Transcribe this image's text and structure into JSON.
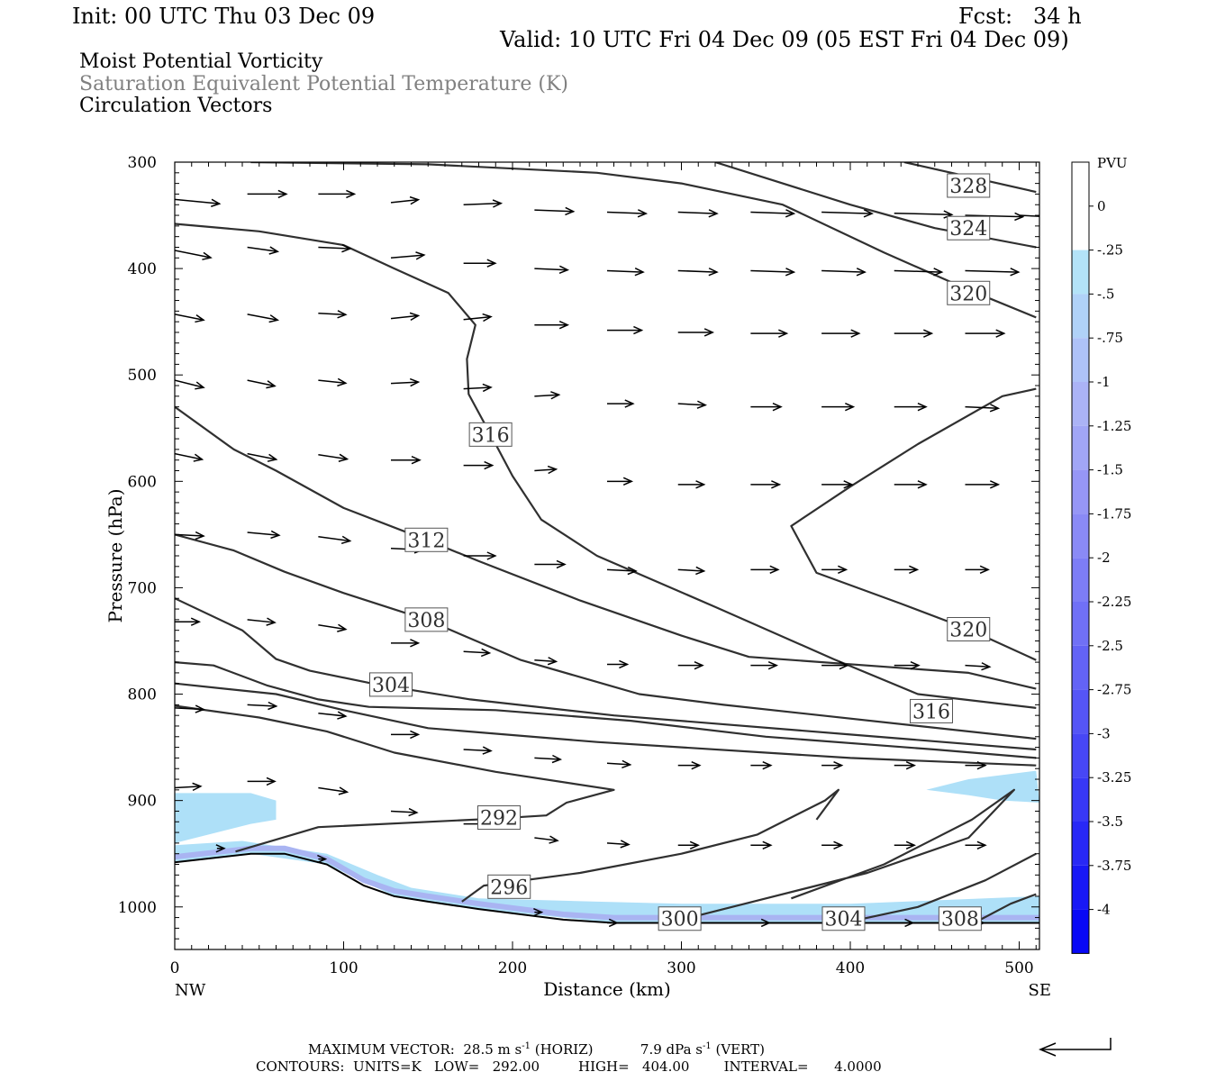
{
  "header": {
    "init": "Init: 00 UTC Thu 03 Dec 09",
    "fcst": "Fcst:   34 h",
    "valid": "Valid: 10 UTC Fri 04 Dec 09 (05 EST Fri 04 Dec 09)"
  },
  "titles": [
    "Moist Potential Vorticity",
    "Saturation Equivalent Potential Temperature (K)",
    "Circulation Vectors"
  ],
  "colors": {
    "shaded_light": "#aee0f8",
    "shaded_mid": "#a9b4f2",
    "contour": "#303030",
    "vector": "#000000"
  },
  "chart_data": {
    "type": "cross-section",
    "xlabel": "Distance (km)",
    "ylabel": "Pressure (hPa)",
    "xlim": [
      0,
      512
    ],
    "ylim": [
      1040,
      300
    ],
    "x_ticks": [
      0,
      100,
      200,
      300,
      400,
      500
    ],
    "y_ticks": [
      300,
      400,
      500,
      600,
      700,
      800,
      900,
      1000
    ],
    "endpoints": {
      "left": "NW",
      "right": "SE"
    },
    "colorbar": {
      "title": "PVU",
      "labels": [
        "0",
        "-.25",
        "-.5",
        "-.75",
        "-1",
        "-1.25",
        "-1.5",
        "-1.75",
        "-2",
        "-2.25",
        "-2.5",
        "-2.75",
        "-3",
        "-3.25",
        "-3.5",
        "-3.75",
        "-4"
      ],
      "colors": [
        "#ffffff",
        "#ffffff",
        "#b3e3f8",
        "#b0d2f8",
        "#aec2f8",
        "#abb3f6",
        "#a1a6f6",
        "#9696f6",
        "#8a8af6",
        "#7d7df6",
        "#7070f6",
        "#6363f6",
        "#5555f6",
        "#4747f6",
        "#3838f6",
        "#2828f6",
        "#1818f6",
        "#0808f6"
      ]
    },
    "contour_labels": [
      {
        "text": "328",
        "x": 470,
        "p": 322
      },
      {
        "text": "324",
        "x": 470,
        "p": 362
      },
      {
        "text": "320",
        "x": 470,
        "p": 423
      },
      {
        "text": "316",
        "x": 187,
        "p": 556
      },
      {
        "text": "312",
        "x": 149,
        "p": 655
      },
      {
        "text": "320",
        "x": 470,
        "p": 739
      },
      {
        "text": "308",
        "x": 149,
        "p": 730
      },
      {
        "text": "304",
        "x": 128,
        "p": 791
      },
      {
        "text": "316",
        "x": 448,
        "p": 816
      },
      {
        "text": "292",
        "x": 192,
        "p": 916
      },
      {
        "text": "296",
        "x": 198,
        "p": 981
      },
      {
        "text": "300",
        "x": 299,
        "p": 1011
      },
      {
        "text": "304",
        "x": 396,
        "p": 1011
      },
      {
        "text": "308",
        "x": 465,
        "p": 1011
      }
    ],
    "contours": [
      {
        "value": 328,
        "x": [
          432,
          510
        ],
        "p": [
          300,
          328
        ]
      },
      {
        "value": 324,
        "x": [
          320,
          350,
          400,
          450,
          510
        ],
        "p": [
          300,
          315,
          340,
          362,
          380
        ]
      },
      {
        "value": 320,
        "x": [
          45,
          150,
          250,
          300,
          360,
          420,
          470,
          510
        ],
        "p": [
          300,
          302,
          310,
          320,
          340,
          385,
          420,
          446
        ]
      },
      {
        "value": 316,
        "x": [
          0,
          50,
          100,
          130,
          162,
          178,
          173,
          174,
          187,
          200,
          217,
          250,
          320,
          390,
          440,
          510
        ],
        "p": [
          358,
          365,
          378,
          400,
          423,
          453,
          485,
          518,
          556,
          595,
          636,
          670,
          718,
          767,
          800,
          813
        ]
      },
      {
        "value": 312,
        "x": [
          0,
          35,
          60,
          100,
          149,
          180,
          240,
          300,
          340,
          470,
          510
        ],
        "p": [
          530,
          570,
          590,
          625,
          655,
          675,
          712,
          745,
          765,
          780,
          795
        ]
      },
      {
        "value": 320,
        "x": [
          510,
          490,
          440,
          400,
          365,
          380,
          430,
          470,
          510
        ],
        "p": [
          513,
          520,
          565,
          605,
          642,
          686,
          715,
          739,
          768
        ]
      },
      {
        "value": 308,
        "x": [
          0,
          35,
          65,
          100,
          149,
          205,
          275,
          325,
          510
        ],
        "p": [
          650,
          665,
          685,
          705,
          730,
          768,
          800,
          810,
          842
        ]
      },
      {
        "value": 304,
        "x": [
          0,
          40,
          60,
          80,
          120,
          175,
          260,
          400,
          510
        ],
        "p": [
          710,
          740,
          767,
          778,
          791,
          805,
          820,
          838,
          852
        ]
      },
      {
        "value": 300,
        "x": [
          0,
          23,
          55,
          85,
          115,
          190,
          270,
          350,
          450,
          510
        ],
        "p": [
          770,
          773,
          792,
          805,
          812,
          815,
          825,
          840,
          852,
          860
        ]
      },
      {
        "value": 296,
        "x": [
          0,
          60,
          100,
          150,
          250,
          350,
          400,
          510
        ],
        "p": [
          790,
          800,
          815,
          832,
          845,
          855,
          860,
          867
        ]
      },
      {
        "value": 292,
        "x": [
          0,
          50,
          90,
          130,
          190,
          260,
          232,
          220,
          190,
          150,
          85,
          36
        ],
        "p": [
          811,
          822,
          835,
          855,
          873,
          890,
          902,
          914,
          917,
          920,
          925,
          948
        ]
      },
      {
        "value": 296,
        "x": [
          170,
          183,
          240,
          300,
          345,
          385,
          393,
          380
        ],
        "p": [
          995,
          980,
          968,
          950,
          932,
          900,
          890,
          918
        ]
      },
      {
        "value": 300,
        "x": [
          305,
          350,
          410,
          470,
          497,
          472,
          420,
          365
        ],
        "p": [
          1010,
          992,
          968,
          935,
          890,
          918,
          960,
          992
        ]
      },
      {
        "value": 304,
        "x": [
          402,
          440,
          480,
          510
        ],
        "p": [
          1013,
          1000,
          975,
          950
        ]
      },
      {
        "value": 308,
        "x": [
          477,
          495,
          510
        ],
        "p": [
          1012,
          997,
          988
        ]
      }
    ],
    "terrain": {
      "x": [
        0,
        45,
        65,
        90,
        112,
        130,
        150,
        180,
        230,
        260,
        512
      ],
      "p": [
        958,
        950,
        950,
        960,
        980,
        990,
        995,
        1002,
        1012,
        1015,
        1015
      ]
    },
    "shaded": [
      {
        "x": [
          0,
          45,
          60,
          60,
          45,
          0
        ],
        "p": [
          893,
          893,
          900,
          918,
          922,
          940
        ]
      },
      {
        "x": [
          0,
          40,
          90,
          120,
          140,
          180,
          250,
          300,
          400,
          512,
          512,
          260,
          180,
          130,
          90,
          45,
          0
        ],
        "p": [
          942,
          938,
          950,
          970,
          982,
          992,
          995,
          997,
          997,
          990,
          1015,
          1015,
          1002,
          990,
          960,
          950,
          958
        ]
      },
      {
        "x": [
          445,
          470,
          510,
          512,
          490,
          470
        ],
        "p": [
          890,
          880,
          872,
          902,
          900,
          895
        ]
      }
    ],
    "vectors": [
      {
        "x": [
          0,
          43,
          85,
          128,
          171,
          213,
          256,
          298,
          341,
          383,
          426,
          468,
          500
        ],
        "p": [
          335,
          330,
          330,
          338,
          340,
          345,
          347,
          347,
          347,
          347,
          348,
          350,
          350
        ],
        "u": [
          31,
          27,
          25,
          19,
          26,
          27,
          27,
          27,
          30,
          35,
          40,
          40,
          20
        ],
        "w": [
          -3,
          0,
          0,
          2,
          1,
          -1,
          -1,
          -1,
          -1,
          -1,
          -1,
          -1,
          -1
        ]
      },
      {
        "x": [
          0,
          43,
          85,
          128,
          171,
          213,
          256,
          298,
          341,
          383,
          426,
          468
        ],
        "p": [
          383,
          380,
          380,
          390,
          395,
          400,
          402,
          402,
          402,
          402,
          402,
          402
        ],
        "u": [
          25,
          21,
          22,
          23,
          22,
          23,
          25,
          27,
          30,
          30,
          33,
          37
        ],
        "w": [
          -5,
          -3,
          -1,
          2,
          0,
          -1,
          -1,
          -1,
          -1,
          -1,
          -1,
          -1
        ]
      },
      {
        "x": [
          0,
          43,
          85,
          128,
          171,
          213,
          256,
          298,
          341,
          383,
          426,
          468
        ],
        "p": [
          443,
          443,
          442,
          447,
          448,
          453,
          458,
          460,
          461,
          461,
          461,
          461
        ],
        "u": [
          20,
          21,
          19,
          19,
          19,
          23,
          24,
          24,
          25,
          26,
          26,
          27
        ],
        "w": [
          -4,
          -4,
          -1,
          2,
          2,
          0,
          0,
          0,
          0,
          0,
          0,
          0
        ]
      },
      {
        "x": [
          0,
          43,
          85,
          128,
          171,
          213,
          256,
          298,
          341,
          383,
          426,
          468
        ],
        "p": [
          505,
          505,
          505,
          508,
          513,
          520,
          527,
          527,
          530,
          530,
          530,
          530
        ],
        "u": [
          20,
          19,
          19,
          19,
          19,
          17,
          18,
          19,
          21,
          22,
          22,
          23
        ],
        "w": [
          -5,
          -4,
          -2,
          1,
          1,
          1,
          0,
          -1,
          0,
          0,
          0,
          -1
        ]
      },
      {
        "x": [
          0,
          43,
          85,
          128,
          171,
          213,
          256,
          298,
          341,
          383,
          426,
          468
        ],
        "p": [
          574,
          574,
          575,
          580,
          585,
          590,
          600,
          603,
          603,
          603,
          603,
          603
        ],
        "u": [
          19,
          20,
          20,
          20,
          20,
          15,
          17,
          18,
          20,
          21,
          22,
          23
        ],
        "w": [
          -4,
          -4,
          -3,
          0,
          0,
          1,
          0,
          0,
          0,
          0,
          0,
          0
        ]
      },
      {
        "x": [
          0,
          43,
          85,
          128,
          171,
          213,
          256,
          298,
          341,
          383,
          426,
          468
        ],
        "p": [
          650,
          648,
          652,
          663,
          670,
          678,
          683,
          683,
          683,
          683,
          683,
          683
        ],
        "u": [
          20,
          22,
          22,
          22,
          22,
          21,
          20,
          18,
          19,
          17,
          16,
          16
        ],
        "w": [
          -1,
          -2,
          -3,
          -1,
          0,
          0,
          -1,
          -1,
          0,
          0,
          0,
          0
        ]
      },
      {
        "x": [
          0,
          43,
          85,
          128,
          171,
          213,
          256,
          298,
          341,
          383,
          426,
          468
        ],
        "p": [
          732,
          730,
          735,
          752,
          760,
          768,
          772,
          773,
          773,
          773,
          773,
          773
        ],
        "u": [
          17,
          19,
          19,
          19,
          18,
          15,
          14,
          17,
          18,
          18,
          17,
          17
        ],
        "w": [
          0,
          -2,
          -3,
          0,
          -1,
          -1,
          0,
          0,
          0,
          0,
          0,
          -1
        ]
      },
      {
        "x": [
          0,
          43,
          85,
          128,
          171,
          213,
          256,
          298,
          341,
          383,
          426,
          468
        ],
        "p": [
          813,
          810,
          818,
          838,
          852,
          860,
          865,
          867,
          867,
          867,
          867,
          867
        ],
        "u": [
          20,
          20,
          19,
          19,
          19,
          18,
          16,
          15,
          14,
          14,
          14,
          14
        ],
        "w": [
          -1,
          -1,
          -2,
          0,
          -1,
          -1,
          -1,
          0,
          0,
          0,
          0,
          0
        ]
      },
      {
        "x": [
          0,
          43,
          85,
          128,
          171,
          213,
          256,
          298,
          341,
          383,
          426,
          468
        ],
        "p": [
          888,
          882,
          888,
          910,
          922,
          935,
          940,
          942,
          942,
          942,
          942,
          942
        ],
        "u": [
          18,
          19,
          20,
          18,
          18,
          16,
          15,
          14,
          14,
          14,
          14,
          14
        ],
        "w": [
          1,
          0,
          -3,
          -1,
          0,
          -2,
          -1,
          0,
          0,
          0,
          0,
          0
        ]
      },
      {
        "x": [
          25,
          85,
          213,
          256,
          298,
          341,
          383,
          426,
          468
        ],
        "p": [
          945,
          955,
          1005,
          1015,
          1015,
          1015,
          1015,
          1015,
          1015
        ],
        "u": [
          5,
          5,
          5,
          7,
          14,
          13,
          13,
          13,
          13
        ],
        "w": [
          0,
          0,
          0,
          0,
          0,
          0,
          0,
          0,
          0
        ]
      }
    ],
    "vector_scale": {
      "px_per_unit": 1.6,
      "px_per_w_unit": 1.6
    }
  },
  "footer": {
    "max_vector_prefix": "MAXIMUM VECTOR:  28.5 m s",
    "max_vector_mid": " (HORIZ)           7.9 dPa s",
    "max_vector_suffix": " (VERT)",
    "sup": "-1",
    "contours": "CONTOURS:  UNITS=K   LOW=   292.00         HIGH=   404.00        INTERVAL=      4.0000"
  }
}
